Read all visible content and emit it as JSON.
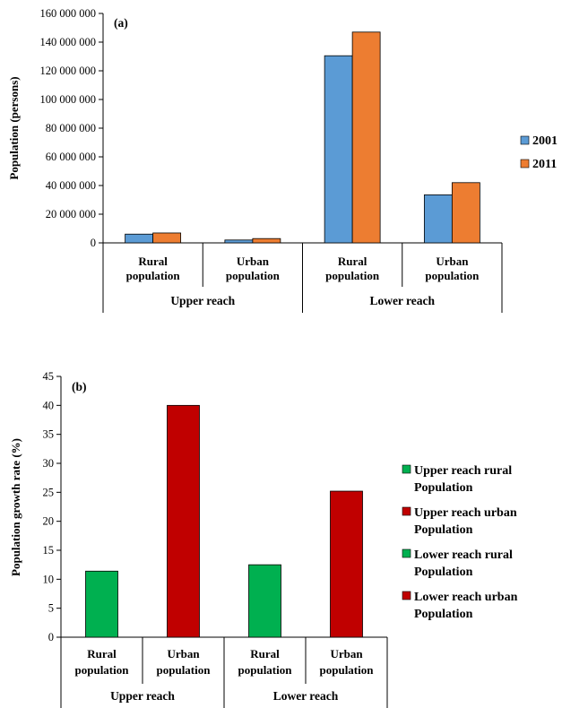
{
  "chart_data": [
    {
      "type": "bar",
      "panel_label": "(a)",
      "ylabel": "Population (persons)",
      "ylim": [
        0,
        160000000
      ],
      "yticks": [
        "0",
        "20 000 000",
        "40 000 000",
        "60 000 000",
        "80 000 000",
        "100 000 000",
        "120 000 000",
        "140 000 000",
        "160 000 000"
      ],
      "categories": [
        [
          "Rural",
          "population"
        ],
        [
          "Urban",
          "population"
        ],
        [
          "Rural",
          "population"
        ],
        [
          "Urban",
          "population"
        ]
      ],
      "groups": [
        "Upper reach",
        "Lower reach"
      ],
      "series": [
        {
          "name": "2001",
          "color": "#5b9bd5",
          "values": [
            6100000,
            2000000,
            130500000,
            33500000
          ]
        },
        {
          "name": "2011",
          "color": "#ed7d31",
          "values": [
            6900000,
            3000000,
            147000000,
            42000000
          ]
        }
      ],
      "legend_position": "right"
    },
    {
      "type": "bar",
      "panel_label": "(b)",
      "ylabel": "Population growth rate (%)",
      "ylim": [
        0,
        45
      ],
      "yticks": [
        "0",
        "5",
        "10",
        "15",
        "20",
        "25",
        "30",
        "35",
        "40",
        "45"
      ],
      "categories": [
        [
          "Rural",
          "population"
        ],
        [
          "Urban",
          "population"
        ],
        [
          "Rural",
          "population"
        ],
        [
          "Urban",
          "population"
        ]
      ],
      "groups": [
        "Upper reach",
        "Lower reach"
      ],
      "values": [
        11.4,
        40.0,
        12.5,
        25.2
      ],
      "colors": [
        "#00b050",
        "#c00000",
        "#00b050",
        "#c00000"
      ],
      "legend": [
        {
          "lines": [
            "Upper reach  rural",
            "Population"
          ],
          "color": "#00b050"
        },
        {
          "lines": [
            "Upper reach urban",
            "Population"
          ],
          "color": "#c00000"
        },
        {
          "lines": [
            "Lower reach  rural",
            "Population"
          ],
          "color": "#00b050"
        },
        {
          "lines": [
            "Lower reach urban",
            "Population"
          ],
          "color": "#c00000"
        }
      ],
      "legend_position": "right"
    }
  ]
}
